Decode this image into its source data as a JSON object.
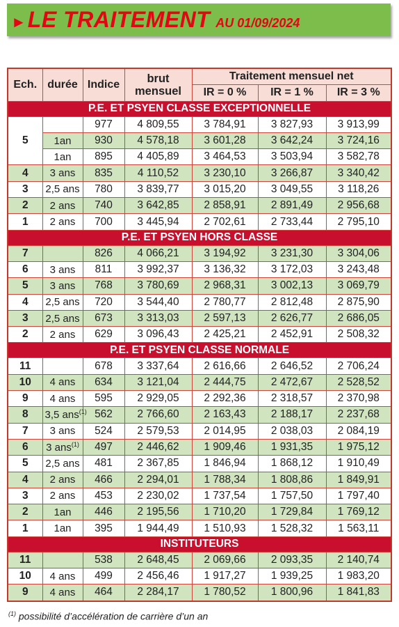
{
  "header": {
    "title": "LE TRAITEMENT",
    "subtitle": "AU 01/09/2024"
  },
  "table": {
    "columns": {
      "ech": "Ech.",
      "duree": "durée",
      "indice": "Indice",
      "brut": "brut mensuel",
      "net": "Traitement mensuel net",
      "ir": [
        "IR = 0 %",
        "IR = 1 %",
        "IR = 3 %"
      ]
    },
    "sections": [
      {
        "title": "P.E. ET PSYEN CLASSE EXCEPTIONNELLE",
        "rows": [
          {
            "ech": "5",
            "cells": [
              "977",
              "4 809,55",
              "3 784,91",
              "3 827,93",
              "3 913,99"
            ],
            "shaded": false
          },
          {
            "duree": "1an",
            "cells": [
              "930",
              "4 578,18",
              "3 601,28",
              "3 642,24",
              "3 724,16"
            ],
            "shaded": true
          },
          {
            "duree": "1an",
            "cells": [
              "895",
              "4 405,89",
              "3 464,53",
              "3 503,94",
              "3 582,78"
            ],
            "shaded": false
          },
          {
            "ech": "4",
            "duree": "3 ans",
            "cells": [
              "835",
              "4 110,52",
              "3 230,10",
              "3 266,87",
              "3 340,42"
            ],
            "shaded": true
          },
          {
            "ech": "3",
            "duree": "2,5 ans",
            "cells": [
              "780",
              "3 839,77",
              "3 015,20",
              "3 049,55",
              "3 118,26"
            ],
            "shaded": false
          },
          {
            "ech": "2",
            "duree": "2 ans",
            "cells": [
              "740",
              "3 642,85",
              "2 858,91",
              "2 891,49",
              "2 956,68"
            ],
            "shaded": true
          },
          {
            "ech": "1",
            "duree": "2 ans",
            "cells": [
              "700",
              "3 445,94",
              "2 702,61",
              "2 733,44",
              "2 795,10"
            ],
            "shaded": false
          }
        ]
      },
      {
        "title": "P.E. ET PSYEN HORS CLASSE",
        "rows": [
          {
            "ech": "7",
            "cells": [
              "826",
              "4 066,21",
              "3 194,92",
              "3 231,30",
              "3 304,06"
            ],
            "shaded": true
          },
          {
            "ech": "6",
            "duree": "3 ans",
            "cells": [
              "811",
              "3 992,37",
              "3 136,32",
              "3 172,03",
              "3 243,48"
            ],
            "shaded": false
          },
          {
            "ech": "5",
            "duree": "3 ans",
            "cells": [
              "768",
              "3 780,69",
              "2 968,31",
              "3 002,13",
              "3 069,79"
            ],
            "shaded": true
          },
          {
            "ech": "4",
            "duree": "2,5 ans",
            "cells": [
              "720",
              "3 544,40",
              "2 780,77",
              "2 812,48",
              "2 875,90"
            ],
            "shaded": false
          },
          {
            "ech": "3",
            "duree": "2,5 ans",
            "cells": [
              "673",
              "3 313,03",
              "2 597,13",
              "2 626,77",
              "2 686,05"
            ],
            "shaded": true
          },
          {
            "ech": "2",
            "duree": "2 ans",
            "cells": [
              "629",
              "3 096,43",
              "2 425,21",
              "2 452,91",
              "2 508,32"
            ],
            "shaded": false
          }
        ]
      },
      {
        "title": "P.E. ET PSYEN CLASSE NORMALE",
        "rows": [
          {
            "ech": "11",
            "cells": [
              "678",
              "3 337,64",
              "2 616,66",
              "2 646,52",
              "2 706,24"
            ],
            "shaded": false
          },
          {
            "ech": "10",
            "duree": "4 ans",
            "cells": [
              "634",
              "3 121,04",
              "2 444,75",
              "2 472,67",
              "2 528,52"
            ],
            "shaded": true
          },
          {
            "ech": "9",
            "duree": "4 ans",
            "cells": [
              "595",
              "2 929,05",
              "2 292,36",
              "2 318,57",
              "2 370,98"
            ],
            "shaded": false
          },
          {
            "ech": "8",
            "duree": "3,5 ans",
            "note": "(1)",
            "cells": [
              "562",
              "2 766,60",
              "2 163,43",
              "2 188,17",
              "2 237,68"
            ],
            "shaded": true
          },
          {
            "ech": "7",
            "duree": "3 ans",
            "cells": [
              "524",
              "2 579,53",
              "2 014,95",
              "2 038,03",
              "2 084,19"
            ],
            "shaded": false
          },
          {
            "ech": "6",
            "duree": "3 ans",
            "note": "(1)",
            "cells": [
              "497",
              "2 446,62",
              "1 909,46",
              "1 931,35",
              "1 975,12"
            ],
            "shaded": true
          },
          {
            "ech": "5",
            "duree": "2,5 ans",
            "cells": [
              "481",
              "2 367,85",
              "1 846,94",
              "1 868,12",
              "1 910,49"
            ],
            "shaded": false
          },
          {
            "ech": "4",
            "duree": "2 ans",
            "cells": [
              "466",
              "2 294,01",
              "1 788,34",
              "1 808,86",
              "1 849,91"
            ],
            "shaded": true
          },
          {
            "ech": "3",
            "duree": "2 ans",
            "cells": [
              "453",
              "2 230,02",
              "1 737,54",
              "1 757,50",
              "1 797,40"
            ],
            "shaded": false
          },
          {
            "ech": "2",
            "duree": "1an",
            "cells": [
              "446",
              "2 195,56",
              "1 710,20",
              "1 729,84",
              "1 769,12"
            ],
            "shaded": true
          },
          {
            "ech": "1",
            "duree": "1an",
            "cells": [
              "395",
              "1 944,49",
              "1 510,93",
              "1 528,32",
              "1 563,11"
            ],
            "shaded": false
          }
        ]
      },
      {
        "title": "INSTITUTEURS",
        "rows": [
          {
            "ech": "11",
            "cells": [
              "538",
              "2 648,45",
              "2 069,66",
              "2 093,35",
              "2 140,74"
            ],
            "shaded": true
          },
          {
            "ech": "10",
            "duree": "4 ans",
            "cells": [
              "499",
              "2 456,46",
              "1 917,27",
              "1 939,25",
              "1 983,20"
            ],
            "shaded": false
          },
          {
            "ech": "9",
            "duree": "4 ans",
            "cells": [
              "464",
              "2 284,17",
              "1 780,52",
              "1 800,96",
              "1 841,83"
            ],
            "shaded": true
          }
        ]
      }
    ]
  },
  "footnote": {
    "marker": "(1)",
    "text": "possibilité d’accélération de carrière d’un an"
  }
}
